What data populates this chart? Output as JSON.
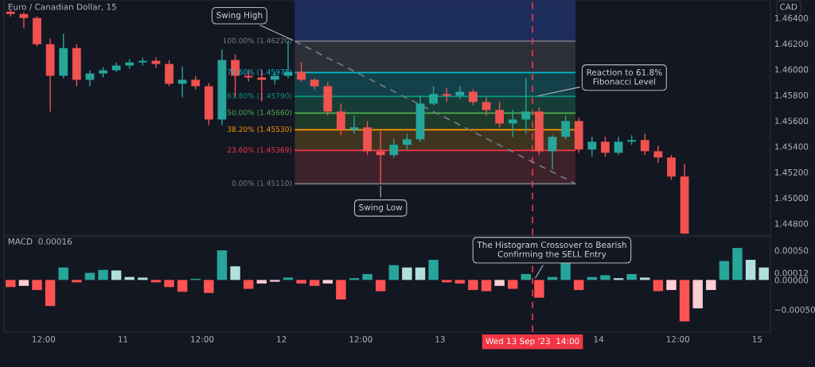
{
  "chart_data": [
    {
      "type": "candlestick",
      "title": "Euro / Canadian Dollar, 15",
      "ylabel": "CAD",
      "tick_labels": "y",
      "xlim": [
        "2023-09-10T06:00",
        "2023-09-15T02:00"
      ],
      "ylim": [
        1.4471,
        1.4654
      ],
      "yticks": [
        {
          "value": 1.448,
          "label": "1.44800"
        },
        {
          "value": 1.45,
          "label": "1.45000"
        },
        {
          "value": 1.452,
          "label": "1.45200"
        },
        {
          "value": 1.454,
          "label": "1.45400"
        },
        {
          "value": 1.456,
          "label": "1.45600"
        },
        {
          "value": 1.458,
          "label": "1.45800"
        },
        {
          "value": 1.46,
          "label": "1.46000"
        },
        {
          "value": 1.462,
          "label": "1.46200"
        },
        {
          "value": 1.464,
          "label": "1.46400"
        }
      ],
      "x": [
        "2023-09-10T07:00",
        "2023-09-10T09:00",
        "2023-09-10T11:00",
        "2023-09-10T13:00",
        "2023-09-10T15:00",
        "2023-09-10T17:00",
        "2023-09-10T19:00",
        "2023-09-10T21:00",
        "2023-09-10T23:00",
        "2023-09-11T01:00",
        "2023-09-11T03:00",
        "2023-09-11T05:00",
        "2023-09-11T07:00",
        "2023-09-11T09:00",
        "2023-09-11T11:00",
        "2023-09-11T13:00",
        "2023-09-11T15:00",
        "2023-09-11T17:00",
        "2023-09-11T19:00",
        "2023-09-11T21:00",
        "2023-09-11T23:00",
        "2023-09-12T01:00",
        "2023-09-12T03:00",
        "2023-09-12T05:00",
        "2023-09-12T07:00",
        "2023-09-12T09:00",
        "2023-09-12T11:00",
        "2023-09-12T13:00",
        "2023-09-12T15:00",
        "2023-09-12T17:00",
        "2023-09-12T19:00",
        "2023-09-12T21:00",
        "2023-09-12T23:00",
        "2023-09-13T01:00",
        "2023-09-13T03:00",
        "2023-09-13T05:00",
        "2023-09-13T07:00",
        "2023-09-13T09:00",
        "2023-09-13T11:00",
        "2023-09-13T13:00",
        "2023-09-13T15:00",
        "2023-09-13T17:00",
        "2023-09-13T19:00",
        "2023-09-13T21:00",
        "2023-09-13T23:00",
        "2023-09-14T01:00",
        "2023-09-14T03:00",
        "2023-09-14T05:00",
        "2023-09-14T07:00",
        "2023-09-14T09:00",
        "2023-09-14T11:00",
        "2023-09-14T13:00"
      ],
      "ohlc": [
        [
          1.46449,
          1.46462,
          1.46412,
          1.46431
        ],
        [
          1.46431,
          1.46443,
          1.4632,
          1.464
        ],
        [
          1.464,
          1.46412,
          1.46178,
          1.46196
        ],
        [
          1.46196,
          1.4624,
          1.45672,
          1.4595
        ],
        [
          1.4595,
          1.46277,
          1.45931,
          1.46166
        ],
        [
          1.46166,
          1.46196,
          1.45869,
          1.45919
        ],
        [
          1.45919,
          1.45993,
          1.45869,
          1.45968
        ],
        [
          1.45968,
          1.46017,
          1.45937,
          1.45993
        ],
        [
          1.45993,
          1.46054,
          1.4598,
          1.4603
        ],
        [
          1.4603,
          1.46079,
          1.46005,
          1.46054
        ],
        [
          1.46054,
          1.46092,
          1.4603,
          1.46067
        ],
        [
          1.46067,
          1.46092,
          1.46011,
          1.46042
        ],
        [
          1.46042,
          1.46073,
          1.45869,
          1.45888
        ],
        [
          1.45888,
          1.46024,
          1.45783,
          1.45919
        ],
        [
          1.45919,
          1.4595,
          1.45845,
          1.45869
        ],
        [
          1.45869,
          1.45894,
          1.45567,
          1.4561
        ],
        [
          1.4561,
          1.46153,
          1.45567,
          1.46073
        ],
        [
          1.46073,
          1.46116,
          1.45783,
          1.4595
        ],
        [
          1.4595,
          1.45993,
          1.45906,
          1.45937
        ],
        [
          1.45937,
          1.45993,
          1.45752,
          1.45919
        ],
        [
          1.45919,
          1.4598,
          1.45882,
          1.4595
        ],
        [
          1.4595,
          1.4622,
          1.45931,
          1.4598
        ],
        [
          1.4598,
          1.46054,
          1.45906,
          1.45919
        ],
        [
          1.45919,
          1.45931,
          1.45845,
          1.45869
        ],
        [
          1.45869,
          1.459,
          1.45641,
          1.45672
        ],
        [
          1.45672,
          1.45734,
          1.45487,
          1.4553
        ],
        [
          1.4553,
          1.45641,
          1.45499,
          1.45549
        ],
        [
          1.45549,
          1.45598,
          1.45333,
          1.45363
        ],
        [
          1.45363,
          1.45518,
          1.4511,
          1.45333
        ],
        [
          1.45333,
          1.45456,
          1.45314,
          1.45413
        ],
        [
          1.45413,
          1.45499,
          1.45376,
          1.45456
        ],
        [
          1.45456,
          1.45795,
          1.45437,
          1.45734
        ],
        [
          1.45734,
          1.45869,
          1.45721,
          1.45808
        ],
        [
          1.45808,
          1.45857,
          1.45746,
          1.45795
        ],
        [
          1.45795,
          1.45869,
          1.45771,
          1.45826
        ],
        [
          1.45826,
          1.45845,
          1.45721,
          1.45746
        ],
        [
          1.45746,
          1.45783,
          1.45641,
          1.45684
        ],
        [
          1.45684,
          1.45746,
          1.45549,
          1.45579
        ],
        [
          1.45579,
          1.45684,
          1.45475,
          1.4561
        ],
        [
          1.4561,
          1.45931,
          1.45499,
          1.45672
        ],
        [
          1.45672,
          1.45703,
          1.45333,
          1.45363
        ],
        [
          1.45363,
          1.45487,
          1.45222,
          1.45475
        ],
        [
          1.45475,
          1.45641,
          1.45456,
          1.45598
        ],
        [
          1.45598,
          1.45623,
          1.45351,
          1.45376
        ],
        [
          1.45376,
          1.45475,
          1.4532,
          1.45437
        ],
        [
          1.45437,
          1.45475,
          1.4532,
          1.45351
        ],
        [
          1.45351,
          1.45475,
          1.45333,
          1.45437
        ],
        [
          1.45437,
          1.45487,
          1.45413,
          1.4545
        ],
        [
          1.4545,
          1.45499,
          1.45333,
          1.45363
        ],
        [
          1.45363,
          1.45407,
          1.45271,
          1.45314
        ],
        [
          1.45314,
          1.45333,
          1.45141,
          1.45166
        ],
        [
          1.45166,
          1.45265,
          1.44722,
          1.44722
        ]
      ],
      "series": [
        {
          "type": "line",
          "x": [
            "2023-09-12T02:00",
            "2023-09-13T20:30"
          ],
          "values": [
            1.4622,
            1.4511
          ],
          "color": "#787b86",
          "line_style": "dashed"
        }
      ],
      "ref_lines": [
        {
          "axis": "y",
          "value": 1.4622,
          "label": "100.00% (1.46220)",
          "color": "#787b86"
        },
        {
          "axis": "y",
          "value": 1.45975,
          "label": "78.60% (1.45975)",
          "color": "#00bcd4"
        },
        {
          "axis": "y",
          "value": 1.4579,
          "label": "61.80% (1.45790)",
          "color": "#089981"
        },
        {
          "axis": "y",
          "value": 1.4566,
          "label": "50.00% (1.45660)",
          "color": "#4caf50"
        },
        {
          "axis": "y",
          "value": 1.4553,
          "label": "38.20% (1.45530)",
          "color": "#ff9800"
        },
        {
          "axis": "y",
          "value": 1.45369,
          "label": "23.60% (1.45369)",
          "color": "#f23645"
        },
        {
          "axis": "y",
          "value": 1.4511,
          "label": "0.00% (1.45110)",
          "color": "#787b86"
        },
        {
          "axis": "x",
          "value": "2023-09-13T14:00",
          "color": "#f23645",
          "line_style": "dashed"
        }
      ],
      "bands": [
        {
          "axis": "y",
          "from": 1.4622,
          "to": 1.4654,
          "color": "#1e2e5c"
        },
        {
          "axis": "y",
          "from": 1.45975,
          "to": 1.4622,
          "color": "#2d3039"
        },
        {
          "axis": "y",
          "from": 1.4579,
          "to": 1.45975,
          "color": "#14404a"
        },
        {
          "axis": "y",
          "from": 1.4566,
          "to": 1.4579,
          "color": "#163d38"
        },
        {
          "axis": "y",
          "from": 1.4553,
          "to": 1.4566,
          "color": "#1e3a2a"
        },
        {
          "axis": "y",
          "from": 1.45369,
          "to": 1.4553,
          "color": "#3f3420"
        },
        {
          "axis": "y",
          "from": 1.4511,
          "to": 1.45369,
          "color": "#3d212b"
        }
      ],
      "annotations": [
        {
          "text": "Swing High",
          "x": "2023-09-12T02:00",
          "y": 1.4622
        },
        {
          "text": "Swing Low",
          "x": "2023-09-12T15:00",
          "y": 1.4511
        },
        {
          "text": "Reaction to 61.8%\nFibonacci Level",
          "x": "2023-09-13T14:30",
          "y": 1.4579
        }
      ]
    },
    {
      "type": "bar",
      "title": "MACD  0.00016",
      "xlim": [
        "2023-09-10T06:00",
        "2023-09-15T02:00"
      ],
      "ylim": [
        -0.00088,
        0.00073
      ],
      "xticks": [
        {
          "value": "2023-09-10T12:00",
          "label": "12:00"
        },
        {
          "value": "2023-09-11",
          "label": "11"
        },
        {
          "value": "2023-09-11T12:00",
          "label": "12:00"
        },
        {
          "value": "2023-09-12",
          "label": "12"
        },
        {
          "value": "2023-09-12T12:00",
          "label": "12:00"
        },
        {
          "value": "2023-09-13",
          "label": "13"
        },
        {
          "value": "2023-09-14",
          "label": "14"
        },
        {
          "value": "2023-09-14T12:00",
          "label": "12:00"
        },
        {
          "value": "2023-09-15",
          "label": "15"
        }
      ],
      "yticks": [
        {
          "value": 0.0005,
          "label": "0.00050"
        },
        {
          "value": 0.00012,
          "label": "0.00012"
        },
        {
          "value": 0,
          "label": "0.00000"
        },
        {
          "value": -0.0005,
          "label": "−0.00050"
        }
      ],
      "x": [
        "2023-09-10T07:00",
        "2023-09-10T09:00",
        "2023-09-10T11:00",
        "2023-09-10T13:00",
        "2023-09-10T15:00",
        "2023-09-10T17:00",
        "2023-09-10T19:00",
        "2023-09-10T21:00",
        "2023-09-10T23:00",
        "2023-09-11T01:00",
        "2023-09-11T03:00",
        "2023-09-11T05:00",
        "2023-09-11T07:00",
        "2023-09-11T09:00",
        "2023-09-11T11:00",
        "2023-09-11T13:00",
        "2023-09-11T15:00",
        "2023-09-11T17:00",
        "2023-09-11T19:00",
        "2023-09-11T21:00",
        "2023-09-11T23:00",
        "2023-09-12T01:00",
        "2023-09-12T03:00",
        "2023-09-12T05:00",
        "2023-09-12T07:00",
        "2023-09-12T09:00",
        "2023-09-12T11:00",
        "2023-09-12T13:00",
        "2023-09-12T15:00",
        "2023-09-12T17:00",
        "2023-09-12T19:00",
        "2023-09-12T21:00",
        "2023-09-12T23:00",
        "2023-09-13T01:00",
        "2023-09-13T03:00",
        "2023-09-13T05:00",
        "2023-09-13T07:00",
        "2023-09-13T09:00",
        "2023-09-13T11:00",
        "2023-09-13T13:00",
        "2023-09-13T15:00",
        "2023-09-13T17:00",
        "2023-09-13T19:00",
        "2023-09-13T21:00",
        "2023-09-13T23:00",
        "2023-09-14T01:00",
        "2023-09-14T03:00",
        "2023-09-14T05:00",
        "2023-09-14T07:00",
        "2023-09-14T09:00",
        "2023-09-14T11:00",
        "2023-09-14T13:00",
        "2023-09-14T15:00",
        "2023-09-14T17:00",
        "2023-09-14T19:00",
        "2023-09-14T21:00",
        "2023-09-14T23:00",
        "2023-09-15T01:00"
      ],
      "values": [
        -0.00012,
        -0.0001,
        -0.00017,
        -0.00044,
        0.00021,
        -4e-05,
        0.00012,
        0.00017,
        0.00016,
        5e-05,
        4e-05,
        -4e-05,
        -0.00012,
        -0.0002,
        2e-05,
        -0.00022,
        0.0005,
        0.00023,
        -0.00015,
        -6e-05,
        -3e-05,
        4e-05,
        -6e-05,
        -0.0001,
        -6e-05,
        -0.00033,
        3e-05,
        0.0001,
        -0.00019,
        0.00025,
        0.00021,
        0.00021,
        0.00034,
        -4e-05,
        -6e-05,
        -0.00017,
        -0.00019,
        -0.0001,
        -0.00015,
        0.0001,
        -0.0003,
        5e-05,
        0.00029,
        -0.00017,
        5e-05,
        8e-05,
        3e-05,
        0.0001,
        4e-05,
        -0.00019,
        -0.00017,
        -0.0007,
        -0.00048,
        -0.00017,
        0.00032,
        0.00054,
        0.00034,
        0.00021
      ],
      "colors": [
        "#ff5252",
        "#ffcdd2",
        "#ff5252",
        "#ff5252",
        "#26a69a",
        "#ff5252",
        "#26a69a",
        "#26a69a",
        "#b2dfdb",
        "#b2dfdb",
        "#b2dfdb",
        "#ff5252",
        "#ff5252",
        "#ff5252",
        "#26a69a",
        "#ff5252",
        "#26a69a",
        "#b2dfdb",
        "#ff5252",
        "#ffcdd2",
        "#ffcdd2",
        "#26a69a",
        "#ff5252",
        "#ff5252",
        "#ffcdd2",
        "#ff5252",
        "#26a69a",
        "#26a69a",
        "#ff5252",
        "#26a69a",
        "#b2dfdb",
        "#b2dfdb",
        "#26a69a",
        "#ff5252",
        "#ff5252",
        "#ff5252",
        "#ff5252",
        "#ffcdd2",
        "#ff5252",
        "#26a69a",
        "#ff5252",
        "#26a69a",
        "#26a69a",
        "#ff5252",
        "#26a69a",
        "#26a69a",
        "#b2dfdb",
        "#26a69a",
        "#b2dfdb",
        "#ff5252",
        "#ffcdd2",
        "#ff5252",
        "#ffcdd2",
        "#ffcdd2",
        "#26a69a",
        "#26a69a",
        "#b2dfdb",
        "#b2dfdb"
      ],
      "ref_lines": [
        {
          "axis": "x",
          "value": "2023-09-13T14:00",
          "label": "Wed 13 Sep '23  14:00",
          "color": "#f23645",
          "line_style": "dashed"
        }
      ],
      "annotations": [
        {
          "text": "The Histogram Crossover to Bearish\nConfirming the SELL Entry",
          "x": "2023-09-13T14:15",
          "y": 0
        }
      ]
    }
  ]
}
